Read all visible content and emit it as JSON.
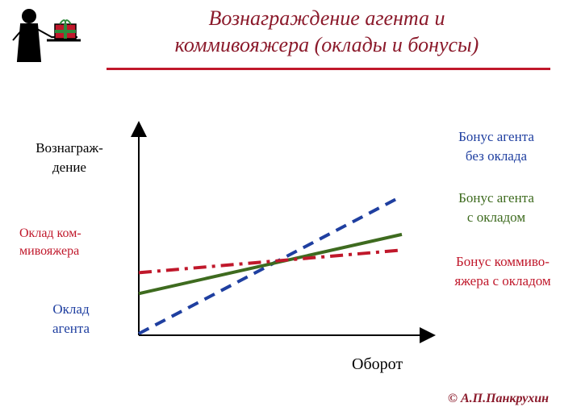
{
  "title": {
    "line1": "Вознаграждение агента и",
    "line2": "коммивояжера (оклады и бонусы)"
  },
  "logo": {
    "icon": "waiter-with-gift-icon"
  },
  "y_axis_label": {
    "line1": "Вознаграж-",
    "line2": "дение"
  },
  "x_axis_label": "Оборот",
  "left_labels": {
    "salesman_salary": {
      "line1": "Оклад ком-",
      "line2": "мивояжера",
      "color": "#c0182b"
    },
    "agent_salary": {
      "line1": "Оклад",
      "line2": "агента",
      "color": "#1f3fa0"
    }
  },
  "right_labels": {
    "agent_no_salary": {
      "line1": "Бонус агента",
      "line2": "без оклада",
      "color": "#1f3fa0"
    },
    "agent_with_salary": {
      "line1": "Бонус агента",
      "line2": "с окладом",
      "color": "#3e6b1f"
    },
    "salesman_with_salary": {
      "line1": "Бонус коммиво-",
      "line2": "яжера с окладом",
      "color": "#c0182b"
    }
  },
  "copyright": "© А.П.Панкрухин",
  "colors": {
    "title": "#8b1a2b",
    "rule": "#c0182b",
    "axis": "#000000"
  },
  "chart_data": {
    "type": "line",
    "xlim": [
      0,
      1
    ],
    "ylim": [
      0,
      1
    ],
    "grid": false,
    "series": [
      {
        "key": "agent_no_salary",
        "style": "dashed",
        "color": "#1f3fa0",
        "x": [
          0,
          1
        ],
        "y": [
          0.0,
          0.79
        ]
      },
      {
        "key": "agent_with_salary",
        "style": "solid",
        "color": "#3e6b1f",
        "x": [
          0,
          1
        ],
        "y": [
          0.23,
          0.57
        ]
      },
      {
        "key": "salesman_with_salary",
        "style": "dash-dot",
        "color": "#c0182b",
        "x": [
          0,
          1
        ],
        "y": [
          0.35,
          0.48
        ]
      }
    ]
  }
}
